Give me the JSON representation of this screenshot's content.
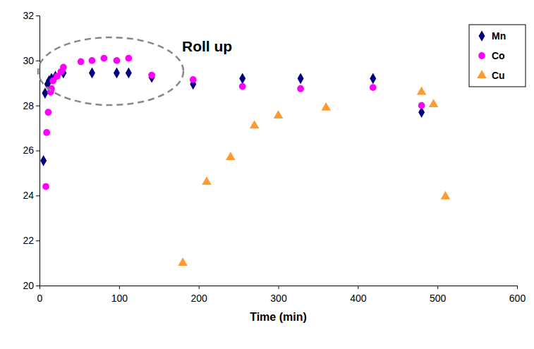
{
  "chart_data": {
    "type": "scatter",
    "x_label": "Time (min)",
    "annotations": [
      {
        "text": "Roll up"
      }
    ],
    "xlim": [
      0,
      600
    ],
    "xticks": [
      0,
      100,
      200,
      300,
      400,
      500,
      600
    ],
    "ylim": [
      20,
      32
    ],
    "yticks": [
      20,
      22,
      24,
      26,
      28,
      30,
      32
    ],
    "grid": false,
    "legend": "upper right",
    "series": [
      {
        "name": "Mn",
        "color": "#000080",
        "marker": "diamond",
        "x": [
          5,
          7,
          10,
          12,
          15,
          20,
          30,
          66,
          97,
          112,
          141,
          193,
          255,
          328,
          419,
          480
        ],
        "values": [
          25.55,
          28.55,
          28.95,
          29.1,
          29.2,
          29.3,
          29.45,
          29.45,
          29.45,
          29.45,
          29.25,
          28.95,
          29.2,
          29.2,
          29.2,
          27.7
        ]
      },
      {
        "name": "Co",
        "color": "#ff00ff",
        "marker": "circle",
        "x": [
          8,
          9,
          11,
          14,
          15,
          17,
          22,
          27,
          30,
          52,
          66,
          81,
          97,
          112,
          141,
          193,
          255,
          328,
          419,
          480
        ],
        "values": [
          24.4,
          26.8,
          27.7,
          28.6,
          28.75,
          29.1,
          29.3,
          29.5,
          29.7,
          29.95,
          30.0,
          30.1,
          30.0,
          30.1,
          29.35,
          29.15,
          28.85,
          28.75,
          28.8,
          28.0
        ]
      },
      {
        "name": "Cu",
        "color": "#ff9933",
        "marker": "triangle",
        "x": [
          180,
          210,
          240,
          270,
          300,
          360,
          480,
          495,
          510
        ],
        "values": [
          21.0,
          24.6,
          25.7,
          27.1,
          27.55,
          27.9,
          28.6,
          28.05,
          23.95
        ]
      }
    ]
  }
}
